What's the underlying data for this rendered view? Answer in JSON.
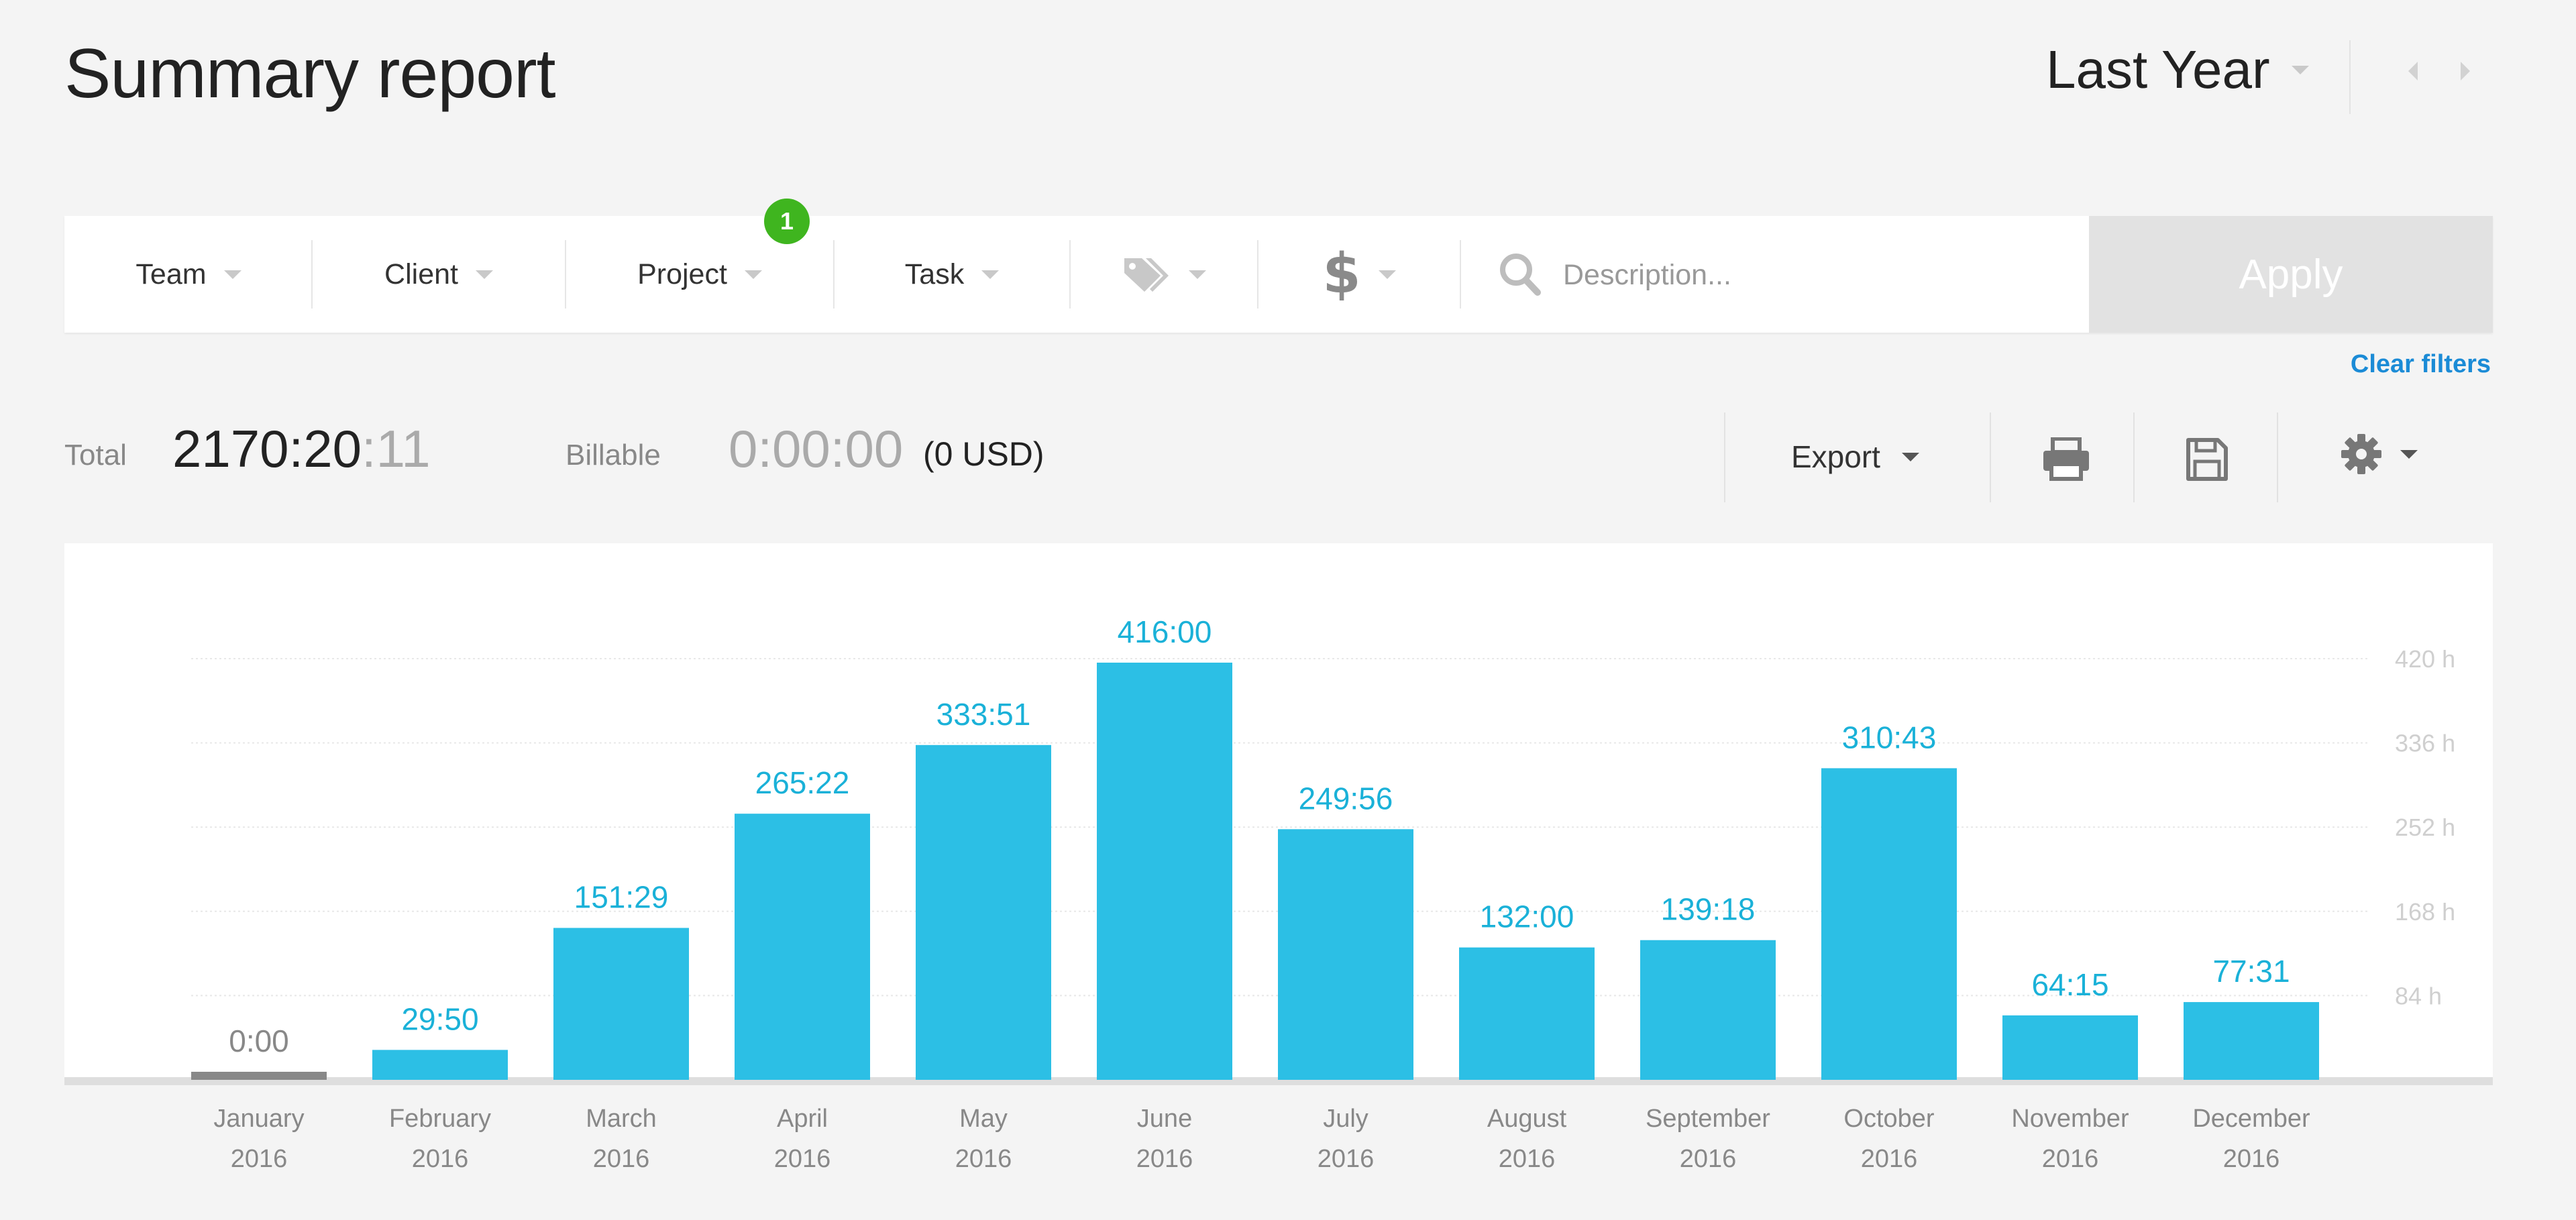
{
  "header": {
    "title": "Summary report",
    "period": "Last Year"
  },
  "filters": {
    "team": "Team",
    "client": "Client",
    "project": "Project",
    "project_badge": "1",
    "task": "Task",
    "tags_icon": "tag-icon",
    "billable_icon": "dollar-icon",
    "search_icon": "search-icon",
    "description_placeholder": "Description...",
    "apply": "Apply",
    "clear": "Clear filters"
  },
  "totals": {
    "total_label": "Total",
    "total_main": "2170:20",
    "total_seconds": ":11",
    "billable_label": "Billable",
    "billable_value": "0:00:00",
    "billable_usd": "(0 USD)"
  },
  "toolbar": {
    "export": "Export",
    "print_icon": "printer-icon",
    "save_icon": "save-icon",
    "settings_icon": "gear-icon"
  },
  "colors": {
    "bar": "#2cbfe5",
    "zero_bar": "#888888",
    "bar_label": "#1ab1d8",
    "badge": "#3fb51f",
    "link": "#1b8bd6"
  },
  "chart_data": {
    "type": "bar",
    "categories": [
      [
        "January",
        "2016"
      ],
      [
        "February",
        "2016"
      ],
      [
        "March",
        "2016"
      ],
      [
        "April",
        "2016"
      ],
      [
        "May",
        "2016"
      ],
      [
        "June",
        "2016"
      ],
      [
        "July",
        "2016"
      ],
      [
        "August",
        "2016"
      ],
      [
        "September",
        "2016"
      ],
      [
        "October",
        "2016"
      ],
      [
        "November",
        "2016"
      ],
      [
        "December",
        "2016"
      ]
    ],
    "values": [
      0,
      29.83,
      151.48,
      265.37,
      333.85,
      416.0,
      249.93,
      132.0,
      139.3,
      310.72,
      64.25,
      77.52
    ],
    "value_labels": [
      "0:00",
      "29:50",
      "151:29",
      "265:22",
      "333:51",
      "416:00",
      "249:56",
      "132:00",
      "139:18",
      "310:43",
      "64:15",
      "77:31"
    ],
    "y_ticks": [
      84,
      168,
      252,
      336,
      420
    ],
    "y_tick_labels": [
      "84 h",
      "168 h",
      "252 h",
      "336 h",
      "420 h"
    ],
    "ylim": [
      0,
      420
    ],
    "grid": true
  }
}
